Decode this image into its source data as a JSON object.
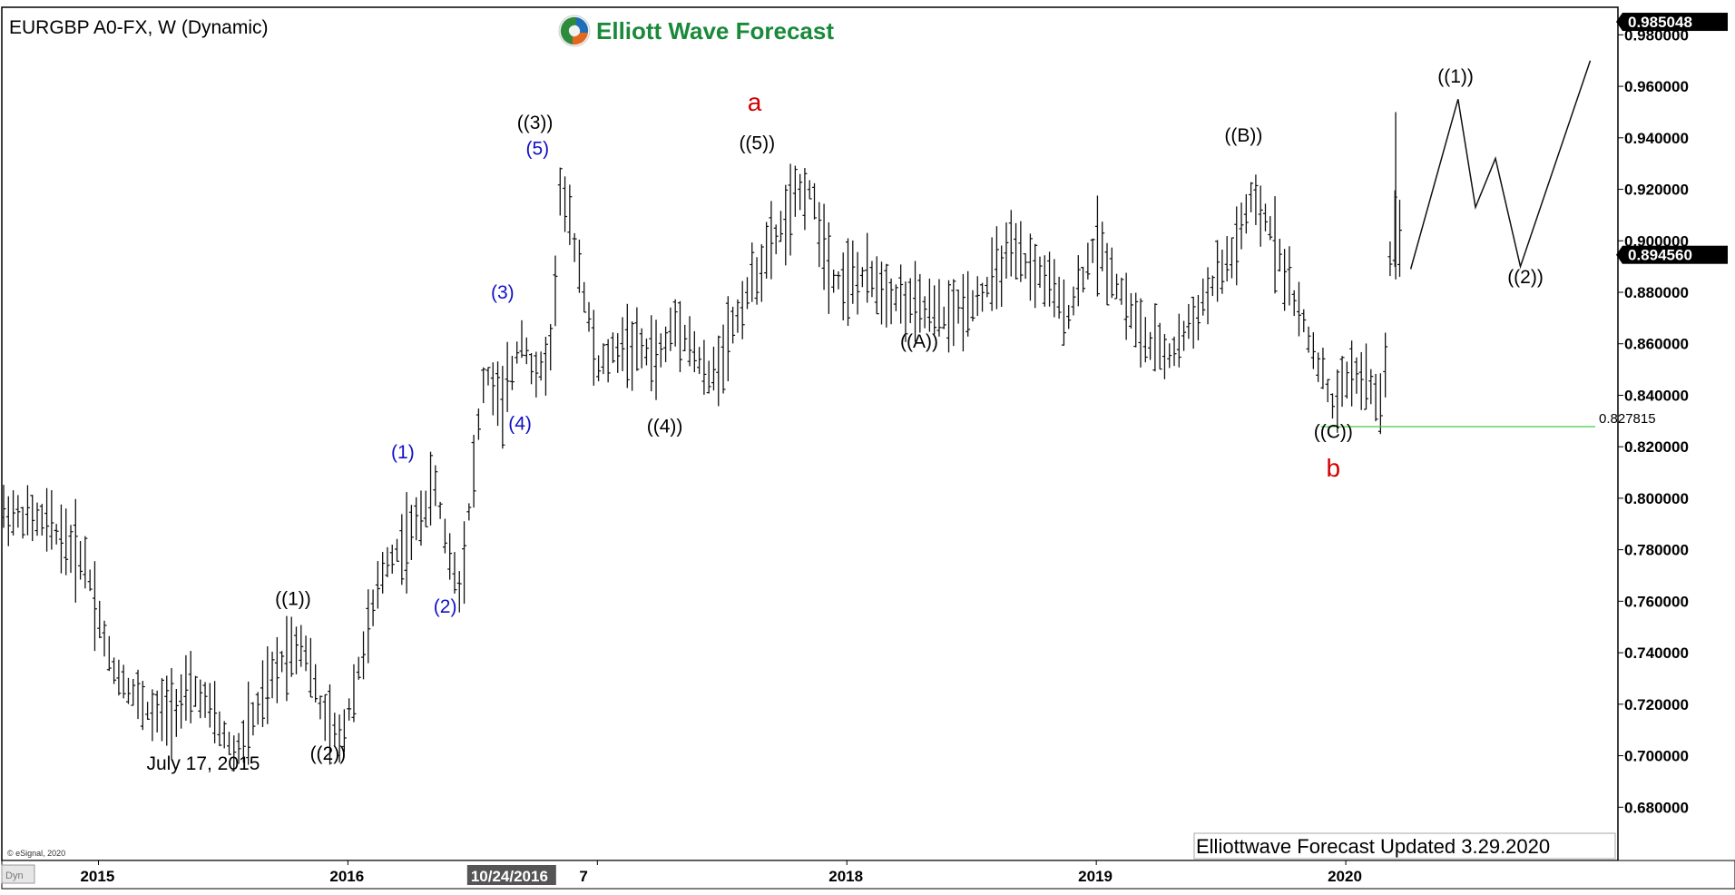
{
  "chart_data": {
    "type": "ohlc",
    "symbol_label": "EURGBP A0-FX, W (Dynamic)",
    "brand": "Elliott Wave Forecast",
    "footer": "Elliottwave Forecast  Updated 3.29.2020",
    "copyright": "© eSignal, 2020",
    "corner_label": "Dyn",
    "ylim": [
      0.66,
      0.99
    ],
    "yticks": [
      0.68,
      0.7,
      0.72,
      0.74,
      0.76,
      0.78,
      0.8,
      0.82,
      0.84,
      0.86,
      0.88,
      0.9,
      0.92,
      0.94,
      0.96,
      0.98
    ],
    "ytick_labels": [
      "0.680000",
      "0.700000",
      "0.720000",
      "0.740000",
      "0.760000",
      "0.780000",
      "0.800000",
      "0.820000",
      "0.840000",
      "0.860000",
      "0.880000",
      "0.900000",
      "0.920000",
      "0.940000",
      "0.960000",
      "0.980000"
    ],
    "price_tags": [
      {
        "value": 0.985048,
        "label": "0.985048"
      },
      {
        "value": 0.89456,
        "label": "0.894560"
      }
    ],
    "x_labels": [
      {
        "t": 2015.0,
        "label": "2015"
      },
      {
        "t": 2016.0,
        "label": "2016"
      },
      {
        "t": 2017.0,
        "label": "7"
      },
      {
        "t": 2018.0,
        "label": "2018"
      },
      {
        "t": 2019.0,
        "label": "2019"
      },
      {
        "t": 2020.0,
        "label": "2020"
      }
    ],
    "cursor_label": {
      "t": 2016.82,
      "label": "10/24/2016"
    },
    "xlim": [
      2014.62,
      2021.08
    ],
    "support_line": {
      "t_start": 2019.9,
      "t_end": 2021.0,
      "value": 0.827815,
      "label": "0.827815",
      "color": "#44cc44"
    },
    "anchors": [
      [
        2014.62,
        0.795
      ],
      [
        2014.8,
        0.79
      ],
      [
        2014.95,
        0.775
      ],
      [
        2015.05,
        0.735
      ],
      [
        2015.22,
        0.715
      ],
      [
        2015.4,
        0.725
      ],
      [
        2015.55,
        0.7
      ],
      [
        2015.75,
        0.74
      ],
      [
        2015.82,
        0.745
      ],
      [
        2015.9,
        0.715
      ],
      [
        2015.97,
        0.705
      ],
      [
        2016.15,
        0.775
      ],
      [
        2016.25,
        0.785
      ],
      [
        2016.35,
        0.805
      ],
      [
        2016.4,
        0.78
      ],
      [
        2016.45,
        0.765
      ],
      [
        2016.55,
        0.85
      ],
      [
        2016.62,
        0.835
      ],
      [
        2016.7,
        0.865
      ],
      [
        2016.75,
        0.845
      ],
      [
        2016.82,
        0.86
      ],
      [
        2016.85,
        0.92
      ],
      [
        2016.92,
        0.895
      ],
      [
        2017.0,
        0.85
      ],
      [
        2017.1,
        0.86
      ],
      [
        2017.25,
        0.855
      ],
      [
        2017.32,
        0.87
      ],
      [
        2017.45,
        0.845
      ],
      [
        2017.6,
        0.88
      ],
      [
        2017.82,
        0.92
      ],
      [
        2017.85,
        0.92
      ],
      [
        2017.95,
        0.885
      ],
      [
        2018.1,
        0.885
      ],
      [
        2018.25,
        0.875
      ],
      [
        2018.4,
        0.87
      ],
      [
        2018.55,
        0.88
      ],
      [
        2018.65,
        0.895
      ],
      [
        2018.8,
        0.885
      ],
      [
        2018.88,
        0.87
      ],
      [
        2019.0,
        0.9
      ],
      [
        2019.1,
        0.88
      ],
      [
        2019.2,
        0.86
      ],
      [
        2019.3,
        0.855
      ],
      [
        2019.45,
        0.88
      ],
      [
        2019.55,
        0.895
      ],
      [
        2019.62,
        0.915
      ],
      [
        2019.7,
        0.905
      ],
      [
        2019.8,
        0.875
      ],
      [
        2019.9,
        0.85
      ],
      [
        2019.95,
        0.835
      ],
      [
        2020.02,
        0.85
      ],
      [
        2020.08,
        0.845
      ],
      [
        2020.15,
        0.835
      ],
      [
        2020.18,
        0.9
      ],
      [
        2020.22,
        0.905
      ]
    ],
    "projection": [
      [
        2020.26,
        0.889
      ],
      [
        2020.45,
        0.955
      ],
      [
        2020.52,
        0.913
      ],
      [
        2020.6,
        0.932
      ],
      [
        2020.7,
        0.89
      ],
      [
        2020.98,
        0.97
      ]
    ],
    "wave_labels": [
      {
        "text": "July 17, 2015",
        "t": 2015.42,
        "v": 0.6945,
        "color": "black"
      },
      {
        "text": "((1))",
        "t": 2015.78,
        "v": 0.7585,
        "color": "black"
      },
      {
        "text": "((2))",
        "t": 2015.92,
        "v": 0.6985,
        "color": "black"
      },
      {
        "text": "(1)",
        "t": 2016.22,
        "v": 0.8155,
        "color": "blue"
      },
      {
        "text": "(2)",
        "t": 2016.39,
        "v": 0.7555,
        "color": "blue"
      },
      {
        "text": "(3)",
        "t": 2016.62,
        "v": 0.8775,
        "color": "blue"
      },
      {
        "text": "(4)",
        "t": 2016.69,
        "v": 0.8265,
        "color": "blue"
      },
      {
        "text": "(5)",
        "t": 2016.76,
        "v": 0.9335,
        "color": "blue"
      },
      {
        "text": "((3))",
        "t": 2016.75,
        "v": 0.9435,
        "color": "black"
      },
      {
        "text": "((4))",
        "t": 2017.27,
        "v": 0.8255,
        "color": "black"
      },
      {
        "text": "((5))",
        "t": 2017.64,
        "v": 0.9355,
        "color": "black"
      },
      {
        "text": "a",
        "t": 2017.63,
        "v": 0.9505,
        "color": "red"
      },
      {
        "text": "((A))",
        "t": 2018.29,
        "v": 0.8585,
        "color": "black"
      },
      {
        "text": "((B))",
        "t": 2019.59,
        "v": 0.9385,
        "color": "black"
      },
      {
        "text": "((C))",
        "t": 2019.95,
        "v": 0.8235,
        "color": "black"
      },
      {
        "text": "b",
        "t": 2019.95,
        "v": 0.8085,
        "color": "red"
      },
      {
        "text": "((1))",
        "t": 2020.44,
        "v": 0.9615,
        "color": "black"
      },
      {
        "text": "((2))",
        "t": 2020.72,
        "v": 0.8835,
        "color": "black"
      }
    ]
  }
}
